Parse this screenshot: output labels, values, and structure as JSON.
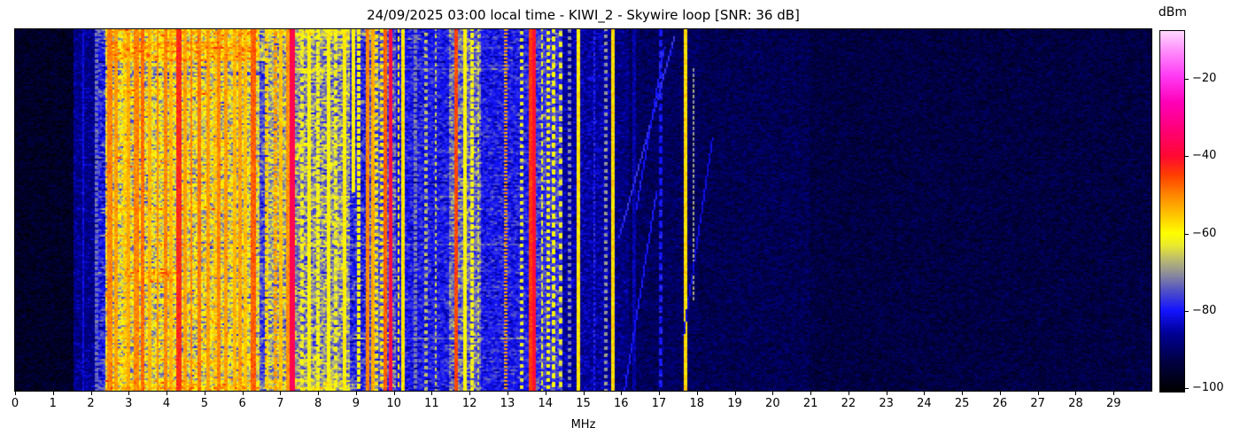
{
  "chart_data": {
    "type": "heatmap",
    "subtype": "radio-spectrogram-waterfall",
    "title": "24/09/2025 03:00 local time - KIWI_2 - Skywire loop [SNR: 36 dB]",
    "station": "KIWI_2",
    "antenna": "Skywire loop",
    "snr_db": 36,
    "timestamp_label": "24/09/2025 03:00 local time",
    "xlabel": "MHz",
    "x_range_mhz": [
      0,
      30
    ],
    "x_ticks": [
      0,
      1,
      2,
      3,
      4,
      5,
      6,
      7,
      8,
      9,
      10,
      11,
      12,
      13,
      14,
      15,
      16,
      17,
      18,
      19,
      20,
      21,
      22,
      23,
      24,
      25,
      26,
      27,
      28,
      29
    ],
    "colorbar_label": "dBm",
    "colorbar_tick_values": [
      -20,
      -40,
      -60,
      -80,
      -100
    ],
    "colorbar_tick_labels": [
      "−20",
      "−40",
      "−60",
      "−80",
      "−100"
    ],
    "value_range_dbm": [
      -101,
      -7.5
    ],
    "colormap_stops": [
      [
        -101,
        [
          0,
          0,
          0
        ]
      ],
      [
        -93,
        [
          0,
          0,
          70
        ]
      ],
      [
        -86,
        [
          0,
          0,
          150
        ]
      ],
      [
        -80,
        [
          20,
          20,
          255
        ]
      ],
      [
        -75,
        [
          80,
          80,
          200
        ]
      ],
      [
        -71,
        [
          135,
          135,
          160
        ]
      ],
      [
        -67,
        [
          185,
          185,
          115
        ]
      ],
      [
        -63,
        [
          235,
          235,
          45
        ]
      ],
      [
        -60,
        [
          255,
          255,
          0
        ]
      ],
      [
        -55,
        [
          255,
          195,
          0
        ]
      ],
      [
        -50,
        [
          255,
          135,
          0
        ]
      ],
      [
        -45,
        [
          255,
          65,
          0
        ]
      ],
      [
        -40,
        [
          255,
          10,
          50
        ]
      ],
      [
        -33,
        [
          255,
          0,
          120
        ]
      ],
      [
        -26,
        [
          255,
          0,
          185
        ]
      ],
      [
        -19,
        [
          255,
          60,
          245
        ]
      ],
      [
        -12,
        [
          255,
          150,
          252
        ]
      ],
      [
        -7.5,
        [
          255,
          215,
          255
        ]
      ]
    ],
    "grid": {
      "cols": 642,
      "rows": 204
    },
    "seed": 20250924,
    "noise_bands": [
      {
        "f0": 0.0,
        "f1": 1.55,
        "level": -96.5,
        "sigma": 2.2
      },
      {
        "f0": 1.55,
        "f1": 2.1,
        "level": -87.0,
        "sigma": 3.0
      },
      {
        "f0": 2.1,
        "f1": 2.36,
        "level": -80.0,
        "sigma": 4.5
      },
      {
        "f0": 2.36,
        "f1": 6.45,
        "level": -64.5,
        "sigma": 7.5
      },
      {
        "f0": 6.45,
        "f1": 6.62,
        "level": -76.0,
        "sigma": 5.0
      },
      {
        "f0": 6.62,
        "f1": 7.4,
        "level": -68.0,
        "sigma": 6.5
      },
      {
        "f0": 7.4,
        "f1": 8.85,
        "level": -70.0,
        "sigma": 6.5
      },
      {
        "f0": 8.85,
        "f1": 9.3,
        "level": -79.0,
        "sigma": 5.0
      },
      {
        "f0": 9.3,
        "f1": 10.05,
        "level": -74.0,
        "sigma": 5.5
      },
      {
        "f0": 10.05,
        "f1": 11.45,
        "level": -80.0,
        "sigma": 4.0
      },
      {
        "f0": 11.45,
        "f1": 12.3,
        "level": -73.0,
        "sigma": 5.5
      },
      {
        "f0": 12.3,
        "f1": 13.55,
        "level": -80.0,
        "sigma": 4.0
      },
      {
        "f0": 13.55,
        "f1": 14.45,
        "level": -77.0,
        "sigma": 4.5
      },
      {
        "f0": 14.45,
        "f1": 15.7,
        "level": -85.5,
        "sigma": 3.2
      },
      {
        "f0": 15.7,
        "f1": 16.2,
        "level": -88.0,
        "sigma": 3.0
      },
      {
        "f0": 16.2,
        "f1": 18.1,
        "level": -91.0,
        "sigma": 2.7
      },
      {
        "f0": 18.1,
        "f1": 21.0,
        "level": -92.0,
        "sigma": 2.5
      },
      {
        "f0": 21.0,
        "f1": 30.0,
        "level": -93.5,
        "sigma": 2.3
      }
    ],
    "carriers": [
      [
        1.8,
        -82,
        0.04,
        0,
        0,
        0,
        1
      ],
      [
        2.14,
        -73,
        0.04,
        3,
        2,
        0,
        1
      ],
      [
        2.5,
        -50,
        0.05,
        0,
        0,
        0,
        1
      ],
      [
        2.66,
        -52,
        0.04,
        0,
        0,
        0,
        1
      ],
      [
        2.88,
        -56,
        0.04,
        4,
        3,
        0,
        1
      ],
      [
        3.01,
        -53,
        0.04,
        0,
        0,
        0,
        1
      ],
      [
        3.2,
        -50,
        0.05,
        0,
        0,
        0,
        1
      ],
      [
        3.36,
        -48,
        0.05,
        0,
        0,
        0,
        1
      ],
      [
        3.56,
        -54,
        0.04,
        0,
        0,
        0,
        1
      ],
      [
        3.76,
        -51,
        0.04,
        0,
        0,
        0,
        1
      ],
      [
        3.96,
        -50,
        0.05,
        0,
        0,
        0,
        1
      ],
      [
        4.12,
        -54,
        0.04,
        0,
        0,
        0,
        1
      ],
      [
        4.32,
        -43,
        0.09,
        0,
        0,
        0,
        1
      ],
      [
        4.5,
        -52,
        0.04,
        0,
        0,
        0,
        1
      ],
      [
        4.65,
        -50,
        0.04,
        0,
        0,
        0,
        1
      ],
      [
        4.88,
        -49,
        0.05,
        0,
        0,
        0,
        1
      ],
      [
        5.08,
        -52,
        0.04,
        0,
        0,
        0,
        1
      ],
      [
        5.3,
        -55,
        0.04,
        4,
        3,
        0,
        1
      ],
      [
        5.38,
        -50,
        0.04,
        0,
        0,
        0,
        1
      ],
      [
        5.58,
        -52,
        0.04,
        0,
        0,
        0,
        1
      ],
      [
        5.78,
        -54,
        0.04,
        0,
        0,
        0,
        1
      ],
      [
        5.92,
        -52,
        0.04,
        0,
        0,
        0,
        1
      ],
      [
        6.08,
        -55,
        0.04,
        0,
        0,
        0,
        1
      ],
      [
        6.28,
        -47,
        0.06,
        0,
        0,
        0,
        1
      ],
      [
        6.62,
        -56,
        0.04,
        4,
        3,
        0,
        1
      ],
      [
        6.86,
        -52,
        0.05,
        4,
        3,
        0,
        1
      ],
      [
        7.02,
        -55,
        0.04,
        0,
        0,
        0,
        1
      ],
      [
        7.18,
        -51,
        0.04,
        0,
        0,
        0,
        1
      ],
      [
        7.33,
        -37,
        0.1,
        0,
        0,
        0,
        1
      ],
      [
        7.56,
        -62,
        0.04,
        5,
        3,
        0,
        1
      ],
      [
        7.76,
        -60,
        0.04,
        0,
        0,
        0,
        1
      ],
      [
        8.0,
        -61,
        0.04,
        4,
        3,
        0,
        1
      ],
      [
        8.26,
        -60,
        0.04,
        0,
        0,
        0,
        1
      ],
      [
        8.46,
        -62,
        0.04,
        5,
        3,
        0,
        1
      ],
      [
        8.68,
        -59,
        0.05,
        0,
        0,
        0,
        1
      ],
      [
        8.93,
        -59,
        0.08,
        0,
        0,
        0,
        0.45
      ],
      [
        9.06,
        -60,
        0.04,
        4,
        3,
        0,
        1
      ],
      [
        9.32,
        -50,
        0.05,
        0,
        0,
        0,
        1
      ],
      [
        9.44,
        -53,
        0.04,
        0,
        0,
        0,
        1
      ],
      [
        9.52,
        -58,
        0.04,
        4,
        2,
        0,
        1
      ],
      [
        9.66,
        -58,
        0.04,
        4,
        2,
        0,
        1
      ],
      [
        9.78,
        -47,
        0.05,
        0,
        0,
        0,
        1
      ],
      [
        9.92,
        -38.5,
        0.06,
        0,
        0,
        0,
        1
      ],
      [
        10.12,
        -58,
        0.04,
        5,
        3,
        0,
        1
      ],
      [
        10.22,
        -58,
        0.04,
        0,
        0,
        0,
        1
      ],
      [
        10.55,
        -72,
        0.04,
        3,
        2,
        0,
        1
      ],
      [
        10.86,
        -67,
        0.04,
        4,
        2,
        0,
        1
      ],
      [
        11.1,
        -65,
        0.04,
        4,
        2,
        0,
        1
      ],
      [
        11.63,
        -45,
        0.06,
        0,
        0,
        0,
        1
      ],
      [
        11.86,
        -60,
        0.04,
        0,
        0,
        0,
        1
      ],
      [
        12.06,
        -61,
        0.04,
        4,
        3,
        0,
        1
      ],
      [
        12.22,
        -64,
        0.04,
        4,
        2,
        0,
        1
      ],
      [
        12.93,
        -52,
        0.05,
        2,
        1,
        0,
        1
      ],
      [
        13.36,
        -63,
        0.04,
        4,
        2,
        0,
        1
      ],
      [
        13.62,
        -44,
        0.05,
        0,
        0,
        0,
        1
      ],
      [
        13.71,
        -39.5,
        0.05,
        0,
        0,
        0,
        1
      ],
      [
        13.9,
        -62,
        0.04,
        5,
        3,
        0,
        1
      ],
      [
        14.06,
        -60,
        0.04,
        4,
        2,
        0,
        1
      ],
      [
        14.22,
        -61,
        0.04,
        5,
        3,
        0,
        1
      ],
      [
        14.38,
        -63,
        0.04,
        6,
        3,
        0,
        1
      ],
      [
        14.62,
        -71,
        0.03,
        4,
        2,
        0,
        1
      ],
      [
        14.86,
        -58,
        0.04,
        0,
        0,
        0,
        1
      ],
      [
        15.3,
        -79,
        0.03,
        3,
        2,
        0,
        1
      ],
      [
        15.6,
        -70,
        0.04,
        4,
        2,
        0,
        1
      ],
      [
        15.78,
        -57,
        0.05,
        0,
        0,
        0,
        1
      ],
      [
        16.35,
        -85,
        0.03,
        0,
        0,
        0,
        1
      ],
      [
        17.05,
        -80,
        0.04,
        6,
        4,
        0,
        1
      ],
      [
        17.7,
        -57,
        0.05,
        0,
        0,
        0,
        1
      ],
      [
        17.92,
        -69,
        0.04,
        3,
        2,
        0.1,
        0.75
      ]
    ],
    "row_events": [
      {
        "t0": 0.0,
        "t1": 0.015,
        "f0": 2.2,
        "f1": 9.5,
        "boost": 6
      },
      {
        "t0": 0.03,
        "t1": 0.088,
        "f0": 2.5,
        "f1": 6.6,
        "boost": 9
      },
      {
        "t0": 0.1,
        "t1": 0.125,
        "f0": 2.3,
        "f1": 6.5,
        "boost": -6
      },
      {
        "t0": 0.168,
        "t1": 0.185,
        "f0": 2.2,
        "f1": 5.2,
        "boost": 5
      },
      {
        "t0": 0.3,
        "t1": 0.315,
        "f0": 2.3,
        "f1": 7.5,
        "boost": 3
      },
      {
        "t0": 0.49,
        "t1": 0.505,
        "f0": 2.3,
        "f1": 5.5,
        "boost": 4
      },
      {
        "t0": 0.66,
        "t1": 0.7,
        "f0": 2.9,
        "f1": 4.4,
        "boost": 7
      },
      {
        "t0": 0.8,
        "t1": 0.815,
        "f0": 2.3,
        "f1": 6.0,
        "boost": 3
      },
      {
        "t0": 0.97,
        "t1": 1.0,
        "f0": 2.2,
        "f1": 9.0,
        "boost": 5
      }
    ],
    "streaks": {
      "prob": 0.22,
      "f0": 2.2,
      "f1_min": 5.0,
      "f1_max": 14.5,
      "boost_min": 2.5,
      "boost_max": 5.5,
      "neg_prob": 0.3
    },
    "diagonals": [
      {
        "f0": 17.42,
        "t0": 0.02,
        "f1": 15.95,
        "t1": 0.58,
        "level": -78
      },
      {
        "f0": 17.15,
        "t0": 0.05,
        "f1": 16.4,
        "t1": 0.5,
        "level": -80
      },
      {
        "f0": 16.95,
        "t0": 0.45,
        "f1": 16.1,
        "t1": 1.0,
        "level": -80
      },
      {
        "f0": 18.42,
        "t0": 0.3,
        "f1": 17.65,
        "t1": 0.85,
        "level": -82
      }
    ]
  }
}
